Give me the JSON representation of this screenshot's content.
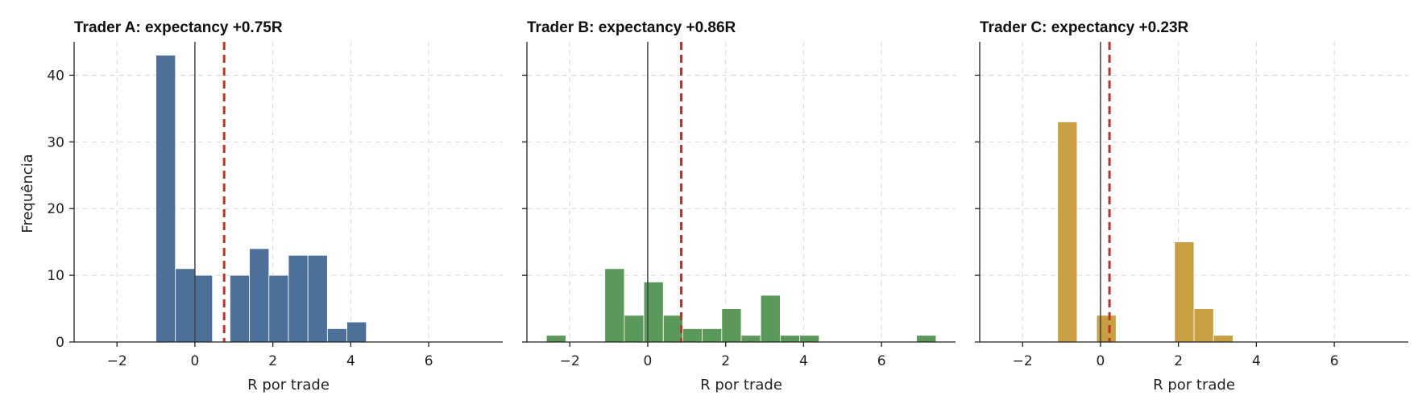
{
  "chart_data": [
    {
      "type": "bar",
      "title": "Trader A: expectancy +0.75R",
      "xlabel": "R por trade",
      "ylabel": "Frequência",
      "xlim": [
        -3.1,
        7.9
      ],
      "ylim": [
        0,
        45
      ],
      "xticks": [
        -2,
        0,
        2,
        4,
        6
      ],
      "yticks": [
        0,
        10,
        20,
        30,
        40
      ],
      "grid": true,
      "color": "#4c7097",
      "mean": 0.75,
      "bin_width": 0.5,
      "bins": [
        {
          "x0": -1.0,
          "x1": -0.5,
          "count": 43
        },
        {
          "x0": -0.5,
          "x1": 0.0,
          "count": 11
        },
        {
          "x0": 0.0,
          "x1": 0.45,
          "count": 10
        },
        {
          "x0": 0.9,
          "x1": 1.4,
          "count": 10
        },
        {
          "x0": 1.4,
          "x1": 1.9,
          "count": 14
        },
        {
          "x0": 1.9,
          "x1": 2.4,
          "count": 10
        },
        {
          "x0": 2.4,
          "x1": 2.9,
          "count": 13
        },
        {
          "x0": 2.9,
          "x1": 3.4,
          "count": 13
        },
        {
          "x0": 3.4,
          "x1": 3.9,
          "count": 2
        },
        {
          "x0": 3.9,
          "x1": 4.4,
          "count": 3
        }
      ]
    },
    {
      "type": "bar",
      "title": "Trader B: expectancy +0.86R",
      "xlabel": "R por trade",
      "ylabel": "",
      "xlim": [
        -3.1,
        7.9
      ],
      "ylim": [
        0,
        45
      ],
      "xticks": [
        -2,
        0,
        2,
        4,
        6
      ],
      "yticks": [
        0,
        10,
        20,
        30,
        40
      ],
      "grid": true,
      "color": "#5a995a",
      "mean": 0.86,
      "bins": [
        {
          "x0": -2.6,
          "x1": -2.1,
          "count": 1
        },
        {
          "x0": -1.1,
          "x1": -0.6,
          "count": 11
        },
        {
          "x0": -0.6,
          "x1": -0.1,
          "count": 4
        },
        {
          "x0": -0.1,
          "x1": 0.4,
          "count": 9
        },
        {
          "x0": 0.4,
          "x1": 0.9,
          "count": 4
        },
        {
          "x0": 0.9,
          "x1": 1.4,
          "count": 2
        },
        {
          "x0": 1.4,
          "x1": 1.9,
          "count": 2
        },
        {
          "x0": 1.9,
          "x1": 2.4,
          "count": 5
        },
        {
          "x0": 2.4,
          "x1": 2.9,
          "count": 1
        },
        {
          "x0": 2.9,
          "x1": 3.4,
          "count": 7
        },
        {
          "x0": 3.4,
          "x1": 3.9,
          "count": 1
        },
        {
          "x0": 3.9,
          "x1": 4.4,
          "count": 1
        },
        {
          "x0": 6.9,
          "x1": 7.4,
          "count": 1
        }
      ]
    },
    {
      "type": "bar",
      "title": "Trader C: expectancy +0.23R",
      "xlabel": "R por trade",
      "ylabel": "",
      "xlim": [
        -3.1,
        7.9
      ],
      "ylim": [
        0,
        45
      ],
      "xticks": [
        -2,
        0,
        2,
        4,
        6
      ],
      "yticks": [
        0,
        10,
        20,
        30,
        40
      ],
      "grid": true,
      "color": "#c8a042",
      "mean": 0.23,
      "bins": [
        {
          "x0": -1.1,
          "x1": -0.6,
          "count": 33
        },
        {
          "x0": -0.1,
          "x1": 0.4,
          "count": 4
        },
        {
          "x0": 1.9,
          "x1": 2.4,
          "count": 15
        },
        {
          "x0": 2.4,
          "x1": 2.9,
          "count": 5
        },
        {
          "x0": 2.9,
          "x1": 3.4,
          "count": 1
        }
      ]
    }
  ]
}
